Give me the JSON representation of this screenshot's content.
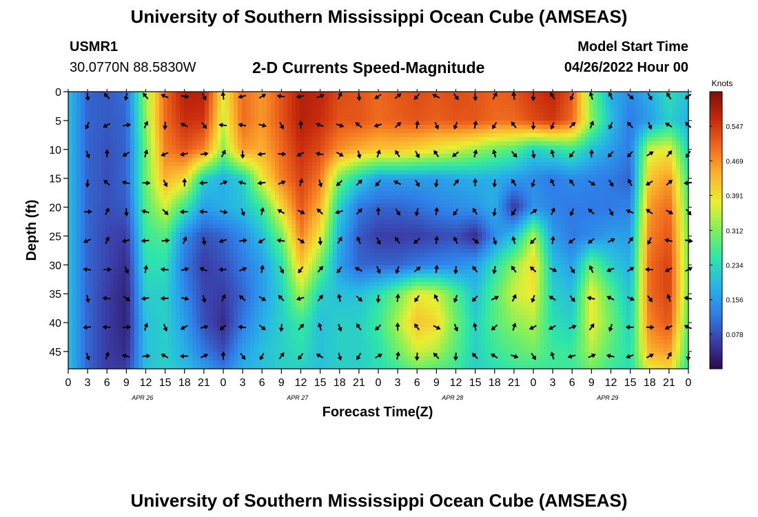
{
  "header": {
    "title": "University of Southern Mississippi Ocean Cube (AMSEAS)",
    "station_id": "USMR1",
    "location": "30.0770N  88.5830W",
    "subtitle": "2-D Currents Speed-Magnitude",
    "model_start_label": "Model Start Time",
    "model_start_value": "04/26/2022 Hour 00"
  },
  "footer": {
    "repeat_title": "University of Southern Mississippi Ocean Cube (AMSEAS)"
  },
  "colorbar": {
    "unit_label": "Knots",
    "ticks": [
      "0.547",
      "0.469",
      "0.391",
      "0.312",
      "0.234",
      "0.156",
      "0.078"
    ],
    "range": [
      0.0,
      0.625
    ],
    "colors": [
      "#2a0a4e",
      "#3b3ea8",
      "#2f7fe8",
      "#27b6e6",
      "#2ee6a8",
      "#7ef05c",
      "#e9ee33",
      "#fcb42e",
      "#f06a1e",
      "#c72a0c",
      "#7a0f06"
    ]
  },
  "chart_data": {
    "type": "heatmap",
    "title": "2-D Currents Speed-Magnitude",
    "xlabel": "Forecast Time(Z)",
    "ylabel": "Depth (ft)",
    "value_unit": "Knots",
    "xlim": [
      0,
      96
    ],
    "ylim": [
      48,
      0
    ],
    "x_tick_labels": [
      "0",
      "3",
      "6",
      "9",
      "12",
      "15",
      "18",
      "21",
      "0",
      "3",
      "6",
      "9",
      "12",
      "15",
      "18",
      "21",
      "0",
      "3",
      "6",
      "9",
      "12",
      "15",
      "18",
      "21",
      "0",
      "3",
      "6",
      "9",
      "12",
      "15",
      "18",
      "21",
      "0"
    ],
    "y_ticks": [
      0,
      5,
      10,
      15,
      20,
      25,
      30,
      35,
      40,
      45
    ],
    "day_labels": [
      "APR 26",
      "APR 27",
      "APR 28",
      "APR 29"
    ],
    "x_times": [
      0,
      3,
      6,
      9,
      12,
      15,
      18,
      21,
      24,
      27,
      30,
      33,
      36,
      39,
      42,
      45,
      48,
      51,
      54,
      57,
      60,
      63,
      66,
      69,
      72,
      75,
      78,
      81,
      84,
      87,
      90,
      93,
      96
    ],
    "depths": [
      0,
      5,
      10,
      15,
      20,
      25,
      30,
      35,
      40,
      45,
      48
    ],
    "speed_grid": [
      [
        0.2,
        0.1,
        0.09,
        0.11,
        0.33,
        0.5,
        0.58,
        0.58,
        0.38,
        0.5,
        0.46,
        0.52,
        0.58,
        0.57,
        0.53,
        0.52,
        0.5,
        0.52,
        0.53,
        0.52,
        0.53,
        0.52,
        0.51,
        0.52,
        0.55,
        0.57,
        0.52,
        0.3,
        0.18,
        0.14,
        0.18,
        0.24,
        0.2
      ],
      [
        0.2,
        0.1,
        0.09,
        0.1,
        0.32,
        0.5,
        0.56,
        0.55,
        0.36,
        0.5,
        0.46,
        0.52,
        0.58,
        0.56,
        0.52,
        0.52,
        0.5,
        0.51,
        0.52,
        0.51,
        0.52,
        0.52,
        0.5,
        0.5,
        0.53,
        0.55,
        0.5,
        0.32,
        0.2,
        0.12,
        0.16,
        0.22,
        0.18
      ],
      [
        0.2,
        0.1,
        0.08,
        0.1,
        0.3,
        0.48,
        0.52,
        0.48,
        0.32,
        0.46,
        0.44,
        0.5,
        0.56,
        0.53,
        0.47,
        0.44,
        0.42,
        0.42,
        0.4,
        0.38,
        0.36,
        0.33,
        0.3,
        0.28,
        0.22,
        0.24,
        0.26,
        0.2,
        0.16,
        0.12,
        0.36,
        0.38,
        0.22
      ],
      [
        0.2,
        0.1,
        0.08,
        0.1,
        0.3,
        0.44,
        0.4,
        0.22,
        0.18,
        0.22,
        0.38,
        0.48,
        0.54,
        0.49,
        0.3,
        0.22,
        0.16,
        0.16,
        0.16,
        0.16,
        0.17,
        0.18,
        0.18,
        0.16,
        0.14,
        0.12,
        0.14,
        0.13,
        0.12,
        0.1,
        0.42,
        0.46,
        0.26
      ],
      [
        0.2,
        0.1,
        0.08,
        0.09,
        0.28,
        0.36,
        0.26,
        0.16,
        0.18,
        0.2,
        0.26,
        0.4,
        0.52,
        0.44,
        0.22,
        0.12,
        0.1,
        0.1,
        0.11,
        0.13,
        0.14,
        0.15,
        0.18,
        0.05,
        0.15,
        0.13,
        0.12,
        0.12,
        0.12,
        0.13,
        0.46,
        0.5,
        0.28
      ],
      [
        0.2,
        0.1,
        0.07,
        0.06,
        0.26,
        0.28,
        0.14,
        0.08,
        0.1,
        0.14,
        0.2,
        0.3,
        0.48,
        0.38,
        0.18,
        0.09,
        0.06,
        0.06,
        0.06,
        0.07,
        0.08,
        0.04,
        0.14,
        0.2,
        0.34,
        0.16,
        0.12,
        0.14,
        0.16,
        0.16,
        0.48,
        0.52,
        0.3
      ],
      [
        0.2,
        0.1,
        0.07,
        0.04,
        0.24,
        0.24,
        0.12,
        0.06,
        0.08,
        0.12,
        0.16,
        0.24,
        0.42,
        0.3,
        0.16,
        0.1,
        0.1,
        0.1,
        0.12,
        0.13,
        0.14,
        0.16,
        0.24,
        0.32,
        0.4,
        0.2,
        0.16,
        0.3,
        0.22,
        0.18,
        0.5,
        0.54,
        0.3
      ],
      [
        0.2,
        0.1,
        0.06,
        0.03,
        0.22,
        0.22,
        0.14,
        0.07,
        0.06,
        0.1,
        0.16,
        0.22,
        0.34,
        0.22,
        0.2,
        0.2,
        0.24,
        0.3,
        0.38,
        0.36,
        0.28,
        0.2,
        0.28,
        0.36,
        0.38,
        0.22,
        0.2,
        0.38,
        0.28,
        0.2,
        0.5,
        0.54,
        0.3
      ],
      [
        0.2,
        0.1,
        0.06,
        0.03,
        0.2,
        0.22,
        0.16,
        0.08,
        0.04,
        0.12,
        0.18,
        0.22,
        0.26,
        0.2,
        0.22,
        0.22,
        0.26,
        0.34,
        0.42,
        0.4,
        0.3,
        0.22,
        0.28,
        0.32,
        0.34,
        0.24,
        0.22,
        0.38,
        0.3,
        0.22,
        0.48,
        0.52,
        0.28
      ],
      [
        0.2,
        0.1,
        0.06,
        0.04,
        0.2,
        0.22,
        0.18,
        0.12,
        0.08,
        0.16,
        0.2,
        0.22,
        0.24,
        0.2,
        0.22,
        0.22,
        0.24,
        0.3,
        0.36,
        0.34,
        0.28,
        0.22,
        0.26,
        0.28,
        0.3,
        0.26,
        0.26,
        0.34,
        0.28,
        0.24,
        0.44,
        0.46,
        0.26
      ],
      [
        0.2,
        0.1,
        0.06,
        0.06,
        0.2,
        0.22,
        0.2,
        0.16,
        0.12,
        0.18,
        0.2,
        0.22,
        0.22,
        0.2,
        0.22,
        0.22,
        0.24,
        0.26,
        0.3,
        0.28,
        0.26,
        0.22,
        0.24,
        0.26,
        0.26,
        0.26,
        0.26,
        0.3,
        0.26,
        0.24,
        0.38,
        0.4,
        0.24
      ]
    ]
  }
}
